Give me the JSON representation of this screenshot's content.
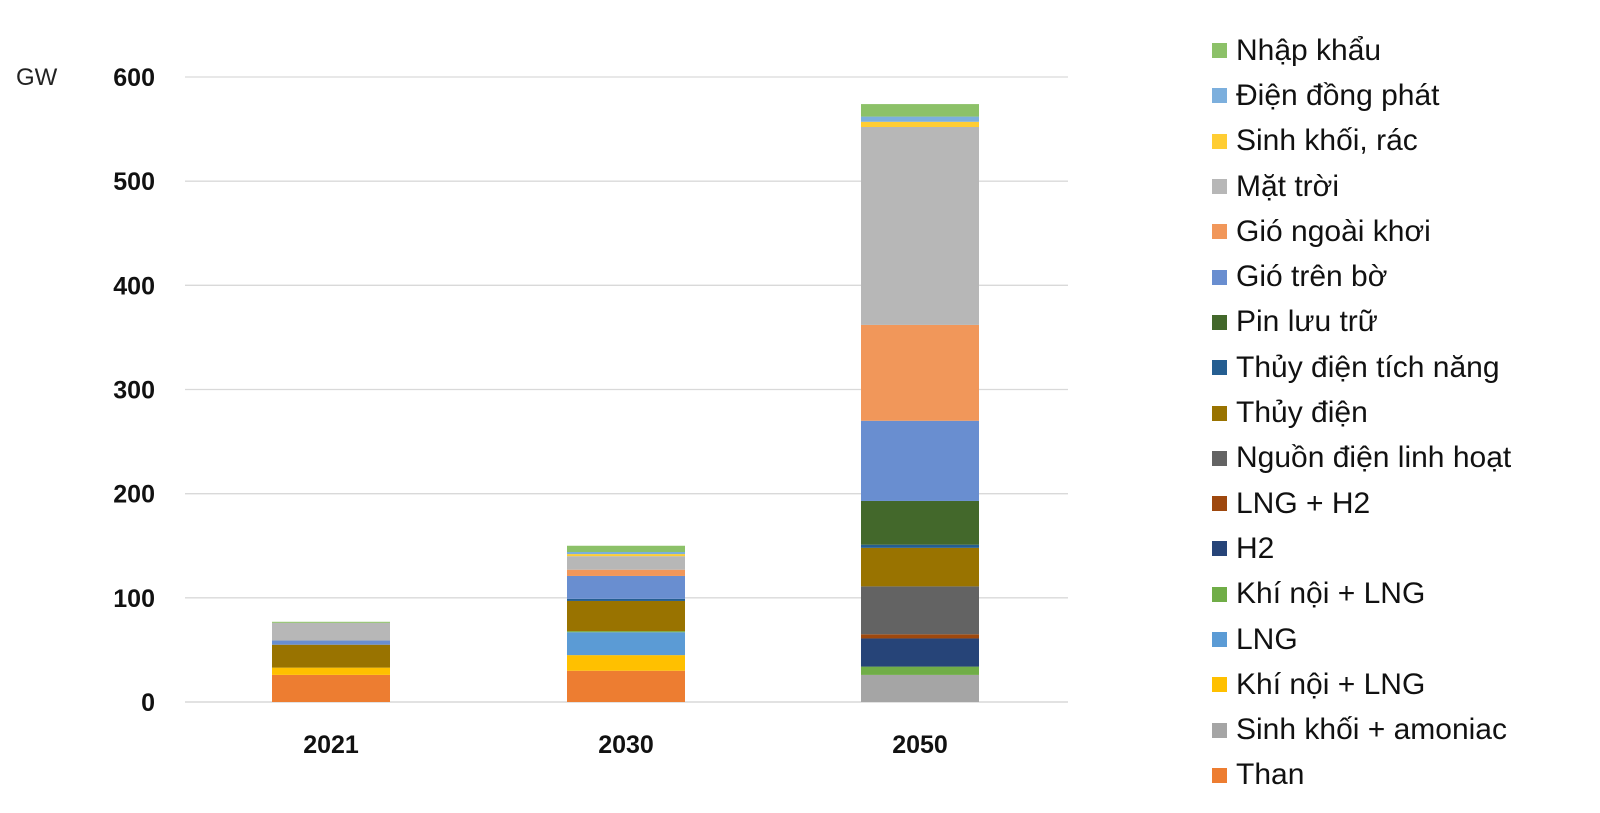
{
  "chart_data": {
    "type": "bar",
    "stacked": true,
    "ylabel": "GW",
    "ylim": [
      0,
      600
    ],
    "yticks": [
      0,
      100,
      200,
      300,
      400,
      500,
      600
    ],
    "grid": true,
    "legend_position": "right",
    "categories": [
      "2021",
      "2030",
      "2050"
    ],
    "series": [
      {
        "name": "Than",
        "color": "#ED7D31",
        "values": [
          26,
          30,
          0
        ]
      },
      {
        "name": "Sinh khối + amoniac",
        "color": "#A5A5A5",
        "values": [
          0,
          0,
          26
        ]
      },
      {
        "name": "Khí nội + LNG",
        "color": "#FFC000",
        "values": [
          7,
          15,
          0
        ]
      },
      {
        "name": "LNG",
        "color": "#5B9BD5",
        "values": [
          0,
          22,
          0
        ]
      },
      {
        "name": "Khí nội + LNG",
        "color": "#70AD47",
        "values": [
          0,
          1,
          8
        ]
      },
      {
        "name": "H2",
        "color": "#264478",
        "values": [
          0,
          0,
          27
        ]
      },
      {
        "name": "LNG + H2",
        "color": "#9E480E",
        "values": [
          0,
          0,
          4
        ]
      },
      {
        "name": "Nguồn điện linh hoạt",
        "color": "#636363",
        "values": [
          0,
          0,
          46
        ]
      },
      {
        "name": "Thủy điện",
        "color": "#997300",
        "values": [
          22,
          29,
          37
        ]
      },
      {
        "name": "Thủy điện tích năng",
        "color": "#255E91",
        "values": [
          0,
          2,
          3
        ]
      },
      {
        "name": "Pin lưu trữ",
        "color": "#43682B",
        "values": [
          0,
          0,
          42
        ]
      },
      {
        "name": "Gió trên bờ",
        "color": "#698ED0",
        "values": [
          4,
          22,
          77
        ]
      },
      {
        "name": "Gió ngoài khơi",
        "color": "#F1975A",
        "values": [
          0,
          6,
          92
        ]
      },
      {
        "name": "Mặt trời",
        "color": "#B7B7B7",
        "values": [
          17,
          13,
          190
        ]
      },
      {
        "name": "Sinh khối, rác",
        "color": "#FFCD33",
        "values": [
          0,
          2,
          5
        ]
      },
      {
        "name": "Điện đồng phát",
        "color": "#7CAFDD",
        "values": [
          0,
          2,
          5
        ]
      },
      {
        "name": "Nhập khẩu",
        "color": "#8CC168",
        "values": [
          1,
          6,
          12
        ]
      }
    ]
  }
}
